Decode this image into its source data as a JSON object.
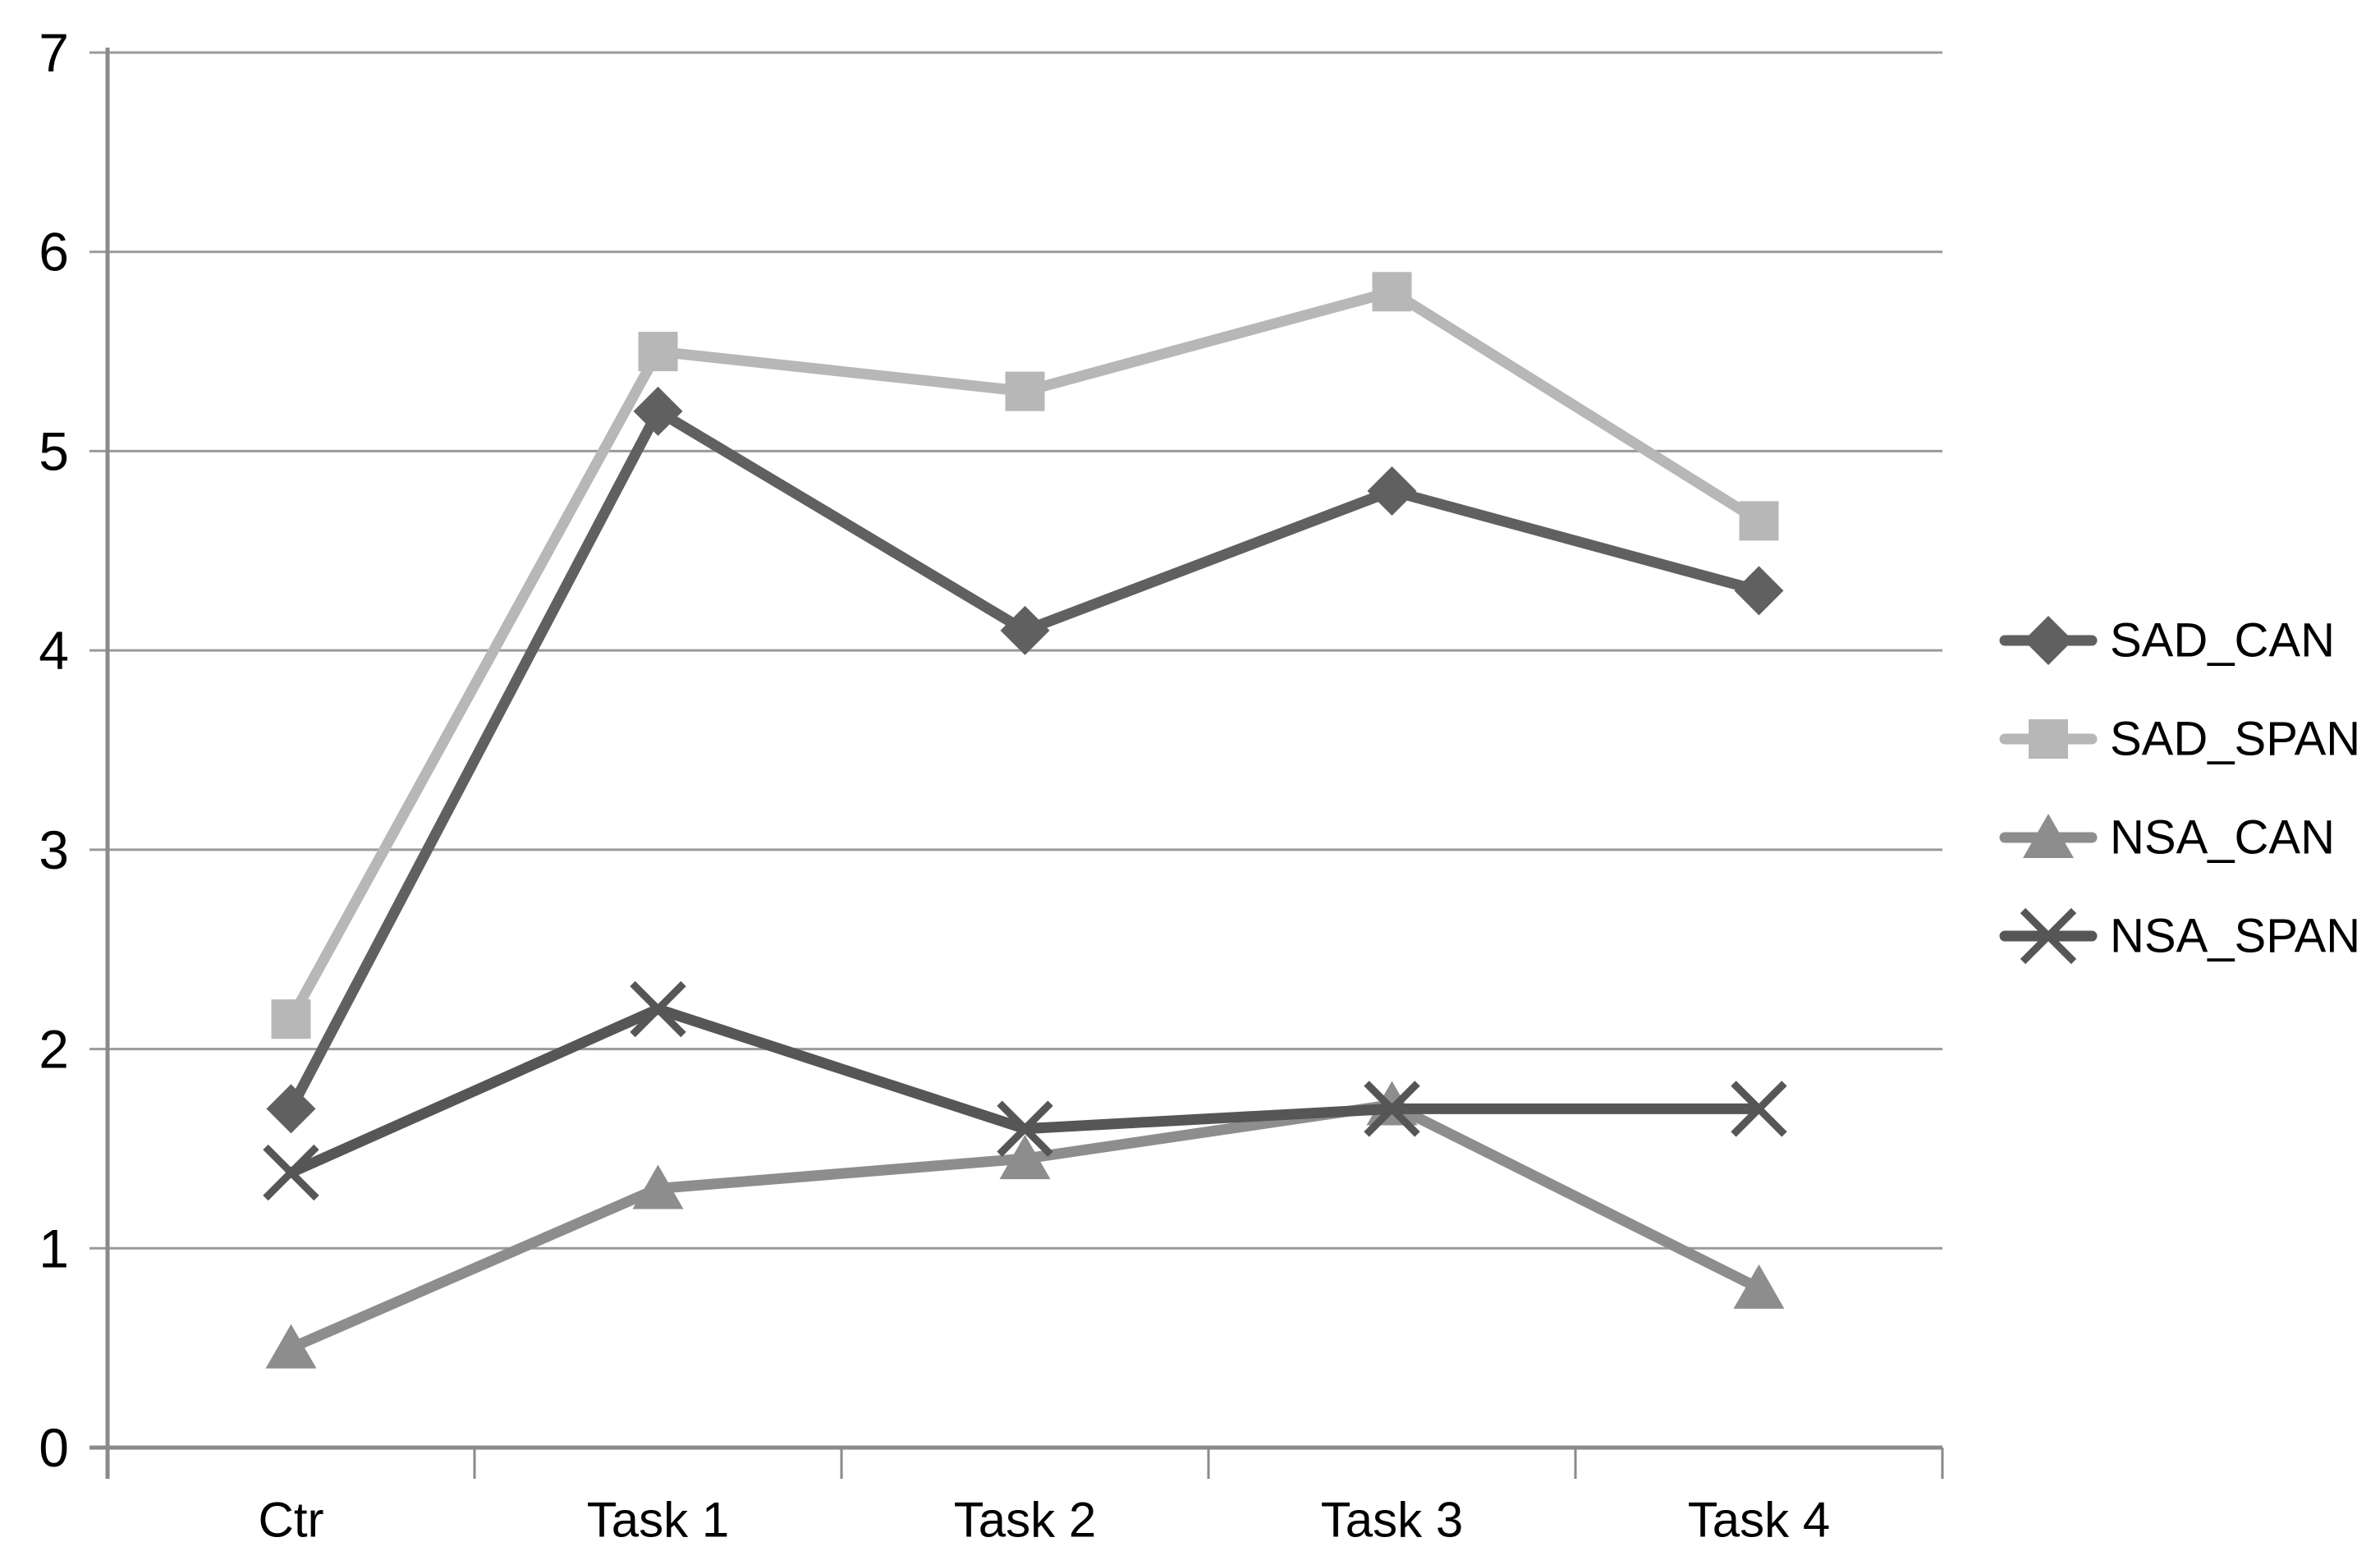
{
  "chart_data": {
    "type": "line",
    "title": "",
    "xlabel": "",
    "ylabel": "",
    "categories": [
      "Ctr",
      "Task 1",
      "Task 2",
      "Task 3",
      "Task 4"
    ],
    "series": [
      {
        "name": "SAD_CAN",
        "marker": "diamond",
        "color": "#606060",
        "values": [
          1.7,
          5.2,
          4.1,
          4.8,
          4.3
        ]
      },
      {
        "name": "SAD_SPAN",
        "marker": "square",
        "color": "#b7b7b7",
        "values": [
          2.15,
          5.5,
          5.3,
          5.8,
          4.65
        ]
      },
      {
        "name": "NSA_CAN",
        "marker": "triangle",
        "color": "#8d8d8d",
        "values": [
          0.5,
          1.3,
          1.45,
          1.72,
          0.8
        ]
      },
      {
        "name": "NSA_SPAN",
        "marker": "x",
        "color": "#565656",
        "values": [
          1.38,
          2.2,
          1.6,
          1.7,
          1.7
        ]
      }
    ],
    "ylim": [
      0,
      7
    ],
    "yticks": [
      0,
      1,
      2,
      3,
      4,
      5,
      6,
      7
    ],
    "grid": true,
    "legend_position": "right",
    "legend_entries": [
      "SAD_CAN",
      "SAD_SPAN",
      "NSA_CAN",
      "NSA_SPAN"
    ]
  },
  "style": {
    "background": "#ffffff",
    "grid_color": "#9a9a9a",
    "axis_color": "#8a8a8a",
    "text_color": "#000000"
  }
}
